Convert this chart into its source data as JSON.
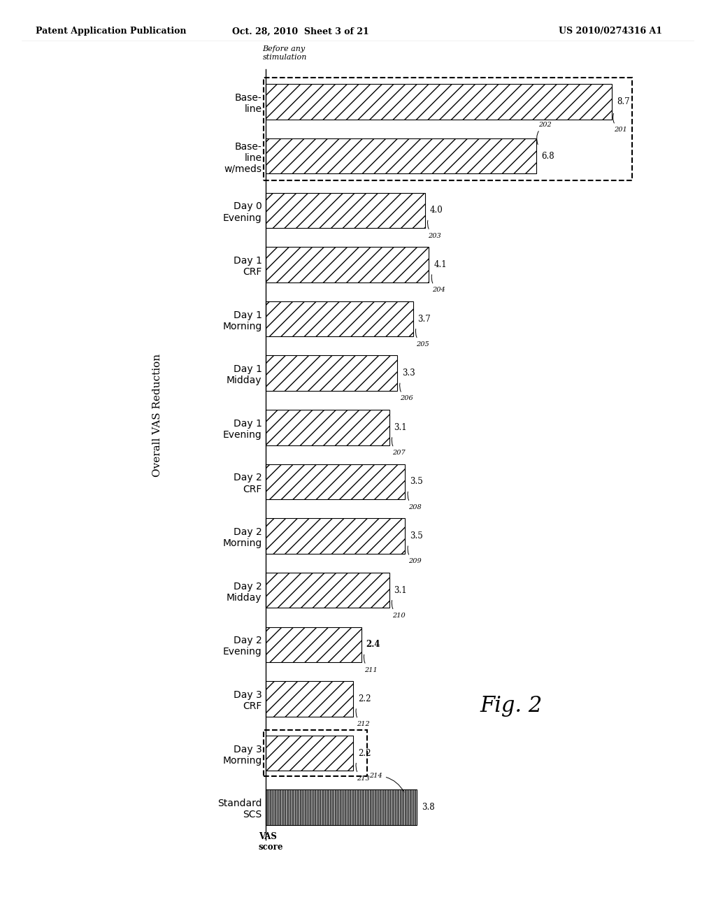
{
  "title": "Overall VAS Reduction",
  "categories": [
    "Base-\nline",
    "Base-\nline\nw/meds",
    "Day 0\nEvening",
    "Day 1\nCRF",
    "Day 1\nMorning",
    "Day 1\nMidday",
    "Day 1\nEvening",
    "Day 2\nCRF",
    "Day 2\nMorning",
    "Day 2\nMidday",
    "Day 2\nEvening",
    "Day 3\nCRF",
    "Day 3\nMorning",
    "Standard\nSCS"
  ],
  "values": [
    8.7,
    6.8,
    4.0,
    4.1,
    3.7,
    3.3,
    3.1,
    3.5,
    3.5,
    3.1,
    2.4,
    2.2,
    2.2,
    3.8
  ],
  "bar_labels": [
    "8.7",
    "6.8",
    "4.0",
    "4.1",
    "3.7",
    "3.3",
    "3.1",
    "3.5",
    "3.5",
    "3.1",
    "2.4",
    "2.2",
    "2.2",
    "3.8"
  ],
  "ref_numbers": [
    "201",
    "202",
    "203",
    "204",
    "205",
    "206",
    "207",
    "208",
    "209",
    "210",
    "211",
    "212",
    "213",
    "214"
  ],
  "before_any_stimulation_label": "Before any\nstimulation",
  "fig2_label": "Fig. 2",
  "patent_header_left": "Patent Application Publication",
  "patent_header_center": "Oct. 28, 2010  Sheet 3 of 21",
  "patent_header_right": "US 2010/0274316 A1",
  "vas_score_label": "VAS\nscore",
  "xlim_max": 10.0,
  "bar_height": 0.65,
  "hatch_diagonal": "//",
  "hatch_vertical": "|||||||"
}
